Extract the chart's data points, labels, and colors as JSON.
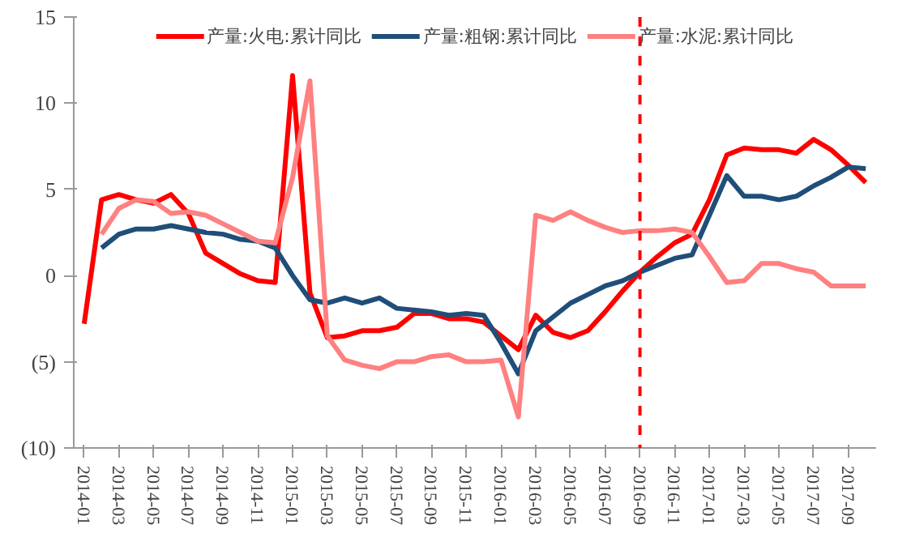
{
  "chart_data": {
    "type": "line",
    "categories": [
      "2014-01",
      null,
      "2014-03",
      null,
      "2014-05",
      null,
      "2014-07",
      null,
      "2014-09",
      null,
      "2014-11",
      null,
      "2015-01",
      null,
      "2015-03",
      null,
      "2015-05",
      null,
      "2015-07",
      null,
      "2015-09",
      null,
      "2015-11",
      null,
      "2016-01",
      null,
      "2016-03",
      null,
      "2016-05",
      null,
      "2016-07",
      null,
      "2016-09",
      null,
      "2016-11",
      null,
      "2017-01",
      null,
      "2017-03",
      null,
      "2017-05",
      null,
      "2017-07",
      null,
      "2017-09",
      null
    ],
    "series": [
      {
        "name": "产量:火电:累计同比",
        "color": "#ff0000",
        "values": [
          -2.8,
          4.4,
          4.7,
          4.4,
          4.2,
          4.7,
          3.6,
          1.3,
          0.7,
          0.1,
          -0.3,
          -0.4,
          11.6,
          -1.0,
          -3.6,
          -3.5,
          -3.2,
          -3.2,
          -3.0,
          -2.2,
          -2.2,
          -2.5,
          -2.5,
          -2.7,
          -3.5,
          -4.3,
          -2.3,
          -3.3,
          -3.6,
          -3.2,
          -2.1,
          -0.9,
          0.2,
          1.1,
          1.9,
          2.4,
          4.4,
          7.0,
          7.4,
          7.3,
          7.3,
          7.1,
          7.9,
          7.3,
          6.4,
          5.4
        ]
      },
      {
        "name": "产量:粗钢:累计同比",
        "color": "#1f4e79",
        "values": [
          null,
          1.6,
          2.4,
          2.7,
          2.7,
          2.9,
          2.7,
          2.5,
          2.4,
          2.1,
          2.0,
          1.6,
          0.0,
          -1.4,
          -1.6,
          -1.3,
          -1.6,
          -1.3,
          -1.9,
          -2.0,
          -2.1,
          -2.3,
          -2.2,
          -2.3,
          -3.9,
          -5.7,
          -3.2,
          -2.4,
          -1.6,
          -1.1,
          -0.6,
          -0.3,
          0.2,
          0.6,
          1.0,
          1.2,
          3.5,
          5.8,
          4.6,
          4.6,
          4.4,
          4.6,
          5.2,
          5.7,
          6.3,
          6.2
        ]
      },
      {
        "name": "产量:水泥:累计同比",
        "color": "#ff8080",
        "values": [
          null,
          2.4,
          3.9,
          4.4,
          4.3,
          3.6,
          3.7,
          3.5,
          3.0,
          2.5,
          2.0,
          1.9,
          5.7,
          11.3,
          -3.5,
          -4.9,
          -5.2,
          -5.4,
          -5.0,
          -5.0,
          -4.7,
          -4.6,
          -5.0,
          -5.0,
          -4.9,
          -8.2,
          3.5,
          3.2,
          3.7,
          3.2,
          2.8,
          2.5,
          2.6,
          2.6,
          2.7,
          2.5,
          1.1,
          -0.4,
          -0.3,
          0.7,
          0.7,
          0.4,
          0.2,
          -0.6,
          -0.6,
          -0.6
        ]
      }
    ],
    "ylim": [
      -10,
      15
    ],
    "yticks": [
      {
        "value": -10,
        "label": "(10)"
      },
      {
        "value": -5,
        "label": "(5)"
      },
      0,
      5,
      10,
      15
    ],
    "ref_lines": [
      {
        "axis": "x",
        "value": "2016-09",
        "color": "#ff0000",
        "line_style": "dashed"
      }
    ],
    "grid": false,
    "legend": "top",
    "marker": "none",
    "line_style": "solid"
  }
}
